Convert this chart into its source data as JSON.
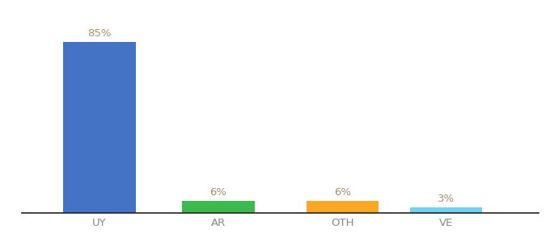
{
  "categories": [
    "UY",
    "AR",
    "OTH",
    "VE"
  ],
  "values": [
    85,
    6,
    6,
    3
  ],
  "bar_colors": [
    "#4472c4",
    "#3dba4e",
    "#f9a825",
    "#74d0f1"
  ],
  "label_color": "#a89070",
  "background_color": "#ffffff",
  "ylim": [
    0,
    96
  ],
  "label_fontsize": 9.5,
  "tick_fontsize": 9.5,
  "tick_color": "#888888"
}
